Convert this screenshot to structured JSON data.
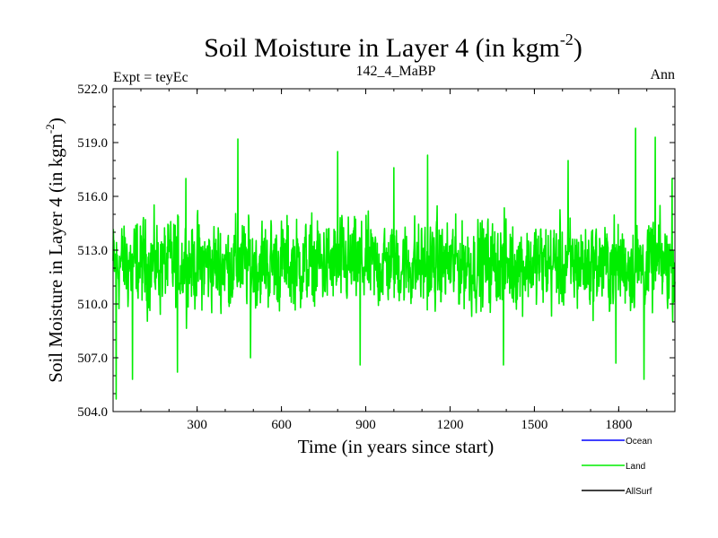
{
  "chart_data": {
    "type": "line",
    "title": "Soil Moisture in Layer 4 (in kgm",
    "title_sup": "-2",
    "title_close": ")",
    "subtitle_left": "Expt = teyEc",
    "subtitle_center": "142_4_MaBP",
    "subtitle_right": "Ann",
    "xlabel": "Time (in years since start)",
    "ylabel": "Soil Moisture in Layer 4 (in kgm",
    "ylabel_sup": "-2",
    "ylabel_close": ")",
    "xlim": [
      1,
      2000
    ],
    "ylim": [
      504.0,
      522.0
    ],
    "xticks": [
      300,
      600,
      900,
      1200,
      1500,
      1800
    ],
    "yticks": [
      "504.0",
      "507.0",
      "510.0",
      "513.0",
      "516.0",
      "519.0",
      "522.0"
    ],
    "legend": [
      {
        "name": "Ocean",
        "color": "#0000ff"
      },
      {
        "name": "Land",
        "color": "#00ee00"
      },
      {
        "name": "AllSurf",
        "color": "#000000"
      }
    ],
    "series": [
      {
        "name": "Land",
        "color": "#00ee00",
        "baseline": 512.2,
        "approx_range": [
          504.7,
          519.8
        ],
        "peaks": [
          [
            3,
            513.4
          ],
          [
            12,
            504.7
          ],
          [
            70,
            505.8
          ],
          [
            230,
            506.2
          ],
          [
            260,
            517.0
          ],
          [
            445,
            519.2
          ],
          [
            490,
            507.0
          ],
          [
            800,
            518.5
          ],
          [
            880,
            506.6
          ],
          [
            1000,
            517.6
          ],
          [
            1120,
            518.3
          ],
          [
            1390,
            506.6
          ],
          [
            1620,
            518.0
          ],
          [
            1790,
            506.7
          ],
          [
            1860,
            519.8
          ],
          [
            1890,
            505.8
          ],
          [
            1930,
            519.3
          ],
          [
            1990,
            517.0
          ]
        ]
      }
    ]
  }
}
